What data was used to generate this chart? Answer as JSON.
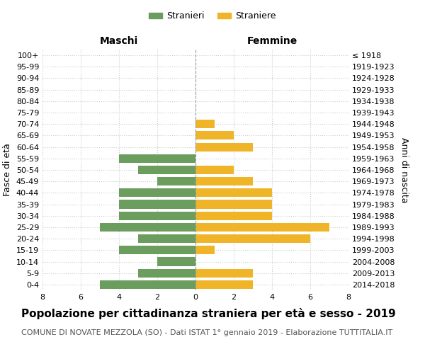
{
  "age_groups": [
    "0-4",
    "5-9",
    "10-14",
    "15-19",
    "20-24",
    "25-29",
    "30-34",
    "35-39",
    "40-44",
    "45-49",
    "50-54",
    "55-59",
    "60-64",
    "65-69",
    "70-74",
    "75-79",
    "80-84",
    "85-89",
    "90-94",
    "95-99",
    "100+"
  ],
  "birth_years": [
    "2014-2018",
    "2009-2013",
    "2004-2008",
    "1999-2003",
    "1994-1998",
    "1989-1993",
    "1984-1988",
    "1979-1983",
    "1974-1978",
    "1969-1973",
    "1964-1968",
    "1959-1963",
    "1954-1958",
    "1949-1953",
    "1944-1948",
    "1939-1943",
    "1934-1938",
    "1929-1933",
    "1924-1928",
    "1919-1923",
    "≤ 1918"
  ],
  "males": [
    5,
    3,
    2,
    4,
    3,
    5,
    4,
    4,
    4,
    2,
    3,
    4,
    0,
    0,
    0,
    0,
    0,
    0,
    0,
    0,
    0
  ],
  "females": [
    3,
    3,
    0,
    1,
    6,
    7,
    4,
    4,
    4,
    3,
    2,
    0,
    3,
    2,
    1,
    0,
    0,
    0,
    0,
    0,
    0
  ],
  "male_color": "#6b9e5e",
  "female_color": "#f0b429",
  "background_color": "#ffffff",
  "grid_color": "#cccccc",
  "title": "Popolazione per cittadinanza straniera per età e sesso - 2019",
  "subtitle": "COMUNE DI NOVATE MEZZOLA (SO) - Dati ISTAT 1° gennaio 2019 - Elaborazione TUTTITALIA.IT",
  "xlabel_left": "Maschi",
  "xlabel_right": "Femmine",
  "ylabel_left": "Fasce di età",
  "ylabel_right": "Anni di nascita",
  "legend_male": "Stranieri",
  "legend_female": "Straniere",
  "xlim": 8,
  "title_fontsize": 11,
  "subtitle_fontsize": 8,
  "tick_fontsize": 8,
  "label_fontsize": 9
}
